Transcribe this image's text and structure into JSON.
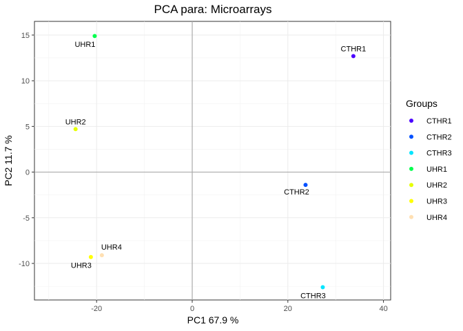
{
  "chart_data": {
    "type": "scatter",
    "title": "PCA para:  Microarrays",
    "xlabel": "PC1 67.9 %",
    "ylabel": "PC2 11.7 %",
    "xlim": [
      -33,
      41.5
    ],
    "ylim": [
      -14,
      16.5
    ],
    "xticks": [
      -20,
      0,
      20,
      40
    ],
    "yticks": [
      -10,
      -5,
      0,
      5,
      10,
      15
    ],
    "xtick_labels": [
      "-20",
      "0",
      "20",
      "40"
    ],
    "ytick_labels": [
      "-10",
      "-5",
      "0",
      "5",
      "10",
      "15"
    ],
    "zero_lines": true,
    "grid": true,
    "legend": {
      "title": "Groups",
      "placement": "right"
    },
    "points": [
      {
        "label": "CTHR1",
        "x": 33.7,
        "y": 12.7,
        "color": "#4B00FF",
        "label_pos": "above"
      },
      {
        "label": "CTHR2",
        "x": 23.7,
        "y": -1.4,
        "color": "#0050FF",
        "label_pos": "below"
      },
      {
        "label": "CTHR3",
        "x": 27.3,
        "y": -12.6,
        "color": "#00E5FF",
        "label_pos": "below-left"
      },
      {
        "label": "UHR1",
        "x": -20.4,
        "y": 14.9,
        "color": "#00FF4D",
        "label_pos": "below-left"
      },
      {
        "label": "UHR2",
        "x": -24.4,
        "y": 4.7,
        "color": "#E6FF00",
        "label_pos": "above"
      },
      {
        "label": "UHR3",
        "x": -21.2,
        "y": -9.3,
        "color": "#FFFF00",
        "label_pos": "below-left"
      },
      {
        "label": "UHR4",
        "x": -18.9,
        "y": -9.1,
        "color": "#FFE0B3",
        "label_pos": "above-right"
      }
    ]
  }
}
